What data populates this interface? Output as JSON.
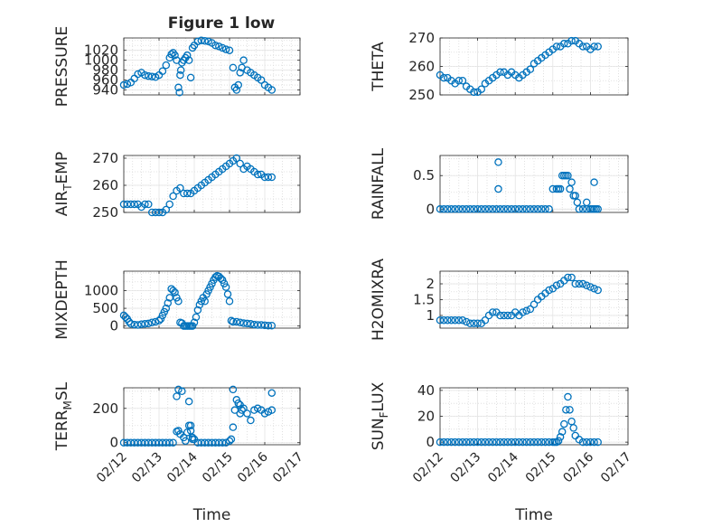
{
  "figure": {
    "title": "Figure 1 low",
    "marker_color": "#0072bd"
  },
  "chart_data": [
    {
      "type": "scatter",
      "ylabel": "PRESSURE",
      "ylim": [
        930,
        1045
      ],
      "yticks": [
        940,
        960,
        980,
        1000,
        1020
      ],
      "xlim": [
        0,
        5
      ],
      "xticks": [
        "02/12",
        "02/13",
        "02/14",
        "02/15",
        "02/16",
        "02/17"
      ],
      "show_xticklabels": false,
      "grid": true,
      "x": [
        0.0,
        0.1,
        0.2,
        0.3,
        0.4,
        0.5,
        0.6,
        0.7,
        0.8,
        0.9,
        1.0,
        1.1,
        1.2,
        1.3,
        1.35,
        1.4,
        1.45,
        1.5,
        1.55,
        1.58,
        1.6,
        1.62,
        1.65,
        1.7,
        1.75,
        1.8,
        1.85,
        1.9,
        1.95,
        2.0,
        2.1,
        2.2,
        2.3,
        2.4,
        2.5,
        2.6,
        2.7,
        2.8,
        2.9,
        3.0,
        3.1,
        3.15,
        3.2,
        3.25,
        3.3,
        3.35,
        3.4,
        3.5,
        3.6,
        3.7,
        3.8,
        3.9,
        4.0,
        4.1,
        4.2
      ],
      "y": [
        950,
        952,
        955,
        963,
        972,
        975,
        970,
        968,
        967,
        966,
        970,
        978,
        990,
        1005,
        1012,
        1015,
        1010,
        1000,
        945,
        935,
        970,
        980,
        995,
        1000,
        1005,
        1010,
        1000,
        965,
        1025,
        1030,
        1038,
        1040,
        1039,
        1038,
        1035,
        1030,
        1028,
        1025,
        1022,
        1020,
        985,
        945,
        940,
        950,
        975,
        985,
        1000,
        980,
        975,
        970,
        965,
        960,
        950,
        945,
        940
      ]
    },
    {
      "type": "scatter",
      "ylabel": "THETA",
      "ylim": [
        250,
        270
      ],
      "yticks": [
        250,
        260,
        270
      ],
      "xlim": [
        0,
        5
      ],
      "xticks": [
        "02/12",
        "02/13",
        "02/14",
        "02/15",
        "02/16",
        "02/17"
      ],
      "show_xticklabels": false,
      "grid": true,
      "x": [
        0.0,
        0.1,
        0.2,
        0.3,
        0.4,
        0.5,
        0.6,
        0.7,
        0.8,
        0.9,
        1.0,
        1.1,
        1.2,
        1.3,
        1.4,
        1.5,
        1.6,
        1.7,
        1.8,
        1.9,
        2.0,
        2.1,
        2.2,
        2.3,
        2.4,
        2.5,
        2.6,
        2.7,
        2.8,
        2.9,
        3.0,
        3.1,
        3.2,
        3.3,
        3.4,
        3.5,
        3.6,
        3.7,
        3.8,
        3.9,
        4.0,
        4.1,
        4.2
      ],
      "y": [
        257,
        256,
        256,
        255,
        254,
        255,
        255,
        253,
        252,
        251,
        251,
        252,
        254,
        255,
        256,
        257,
        258,
        258,
        257,
        258,
        257,
        256,
        257,
        258,
        259,
        261,
        262,
        263,
        264,
        265,
        266,
        267,
        267,
        268,
        268,
        269,
        269,
        268,
        267,
        267,
        266,
        267,
        267
      ]
    },
    {
      "type": "scatter",
      "ylabel": "AIR_TEMP",
      "ylim": [
        250,
        271
      ],
      "yticks": [
        250,
        260,
        270
      ],
      "xlim": [
        0,
        5
      ],
      "xticks": [
        "02/12",
        "02/13",
        "02/14",
        "02/15",
        "02/16",
        "02/17"
      ],
      "show_xticklabels": false,
      "grid": true,
      "x": [
        0.0,
        0.1,
        0.2,
        0.3,
        0.4,
        0.5,
        0.6,
        0.7,
        0.8,
        0.9,
        1.0,
        1.1,
        1.2,
        1.3,
        1.4,
        1.5,
        1.6,
        1.7,
        1.8,
        1.9,
        2.0,
        2.1,
        2.2,
        2.3,
        2.4,
        2.5,
        2.6,
        2.7,
        2.8,
        2.9,
        3.0,
        3.1,
        3.2,
        3.3,
        3.4,
        3.5,
        3.6,
        3.7,
        3.8,
        3.9,
        4.0,
        4.1,
        4.2
      ],
      "y": [
        253,
        253,
        253,
        253,
        253,
        252,
        253,
        253,
        250,
        250,
        250,
        250,
        251,
        253,
        256,
        258,
        259,
        257,
        257,
        257,
        258,
        259,
        260,
        261,
        262,
        263,
        264,
        265,
        266,
        267,
        268,
        269,
        270,
        268,
        266,
        267,
        266,
        265,
        264,
        264,
        263,
        263,
        263
      ]
    },
    {
      "type": "scatter",
      "ylabel": "RAINFALL",
      "ylim": [
        -0.05,
        0.8
      ],
      "yticks": [
        0,
        0.5
      ],
      "xlim": [
        0,
        5
      ],
      "xticks": [
        "02/12",
        "02/13",
        "02/14",
        "02/15",
        "02/16",
        "02/17"
      ],
      "show_xticklabels": false,
      "grid": true,
      "x": [
        0.0,
        0.1,
        0.2,
        0.3,
        0.4,
        0.5,
        0.6,
        0.7,
        0.8,
        0.9,
        1.0,
        1.1,
        1.2,
        1.3,
        1.4,
        1.5,
        1.6,
        1.7,
        1.8,
        1.9,
        2.0,
        2.1,
        2.2,
        2.3,
        2.4,
        2.5,
        2.6,
        2.7,
        2.8,
        2.9,
        3.0,
        3.1,
        3.15,
        3.2,
        3.25,
        3.3,
        3.35,
        3.4,
        3.45,
        3.5,
        3.55,
        3.6,
        3.65,
        3.7,
        3.8,
        3.9,
        4.0,
        4.05,
        4.1,
        4.15,
        4.2,
        1.55,
        1.55,
        3.9,
        4.1
      ],
      "y": [
        0,
        0,
        0,
        0,
        0,
        0,
        0,
        0,
        0,
        0,
        0,
        0,
        0,
        0,
        0,
        0,
        0,
        0,
        0,
        0,
        0,
        0,
        0,
        0,
        0,
        0,
        0,
        0,
        0,
        0,
        0.3,
        0.3,
        0.3,
        0.3,
        0.5,
        0.5,
        0.5,
        0.5,
        0.3,
        0.4,
        0.2,
        0.2,
        0.1,
        0,
        0,
        0,
        0,
        0,
        0,
        0,
        0,
        0.3,
        0.7,
        0.1,
        0.4
      ]
    },
    {
      "type": "scatter",
      "ylabel": "MIXDEPTH",
      "ylim": [
        -60,
        1550
      ],
      "yticks": [
        0,
        500,
        1000
      ],
      "xlim": [
        0,
        5
      ],
      "xticks": [
        "02/12",
        "02/13",
        "02/14",
        "02/15",
        "02/16",
        "02/17"
      ],
      "show_xticklabels": false,
      "grid": true,
      "x": [
        0.0,
        0.05,
        0.1,
        0.15,
        0.2,
        0.3,
        0.4,
        0.5,
        0.6,
        0.7,
        0.8,
        0.9,
        1.0,
        1.05,
        1.1,
        1.15,
        1.2,
        1.25,
        1.3,
        1.35,
        1.4,
        1.45,
        1.5,
        1.55,
        1.6,
        1.65,
        1.7,
        1.75,
        1.8,
        1.85,
        1.9,
        1.95,
        2.0,
        2.05,
        2.1,
        2.15,
        2.2,
        2.25,
        2.3,
        2.35,
        2.4,
        2.45,
        2.5,
        2.55,
        2.6,
        2.65,
        2.7,
        2.75,
        2.8,
        2.85,
        2.9,
        2.95,
        3.0,
        3.05,
        3.1,
        3.2,
        3.3,
        3.4,
        3.5,
        3.6,
        3.7,
        3.8,
        3.9,
        4.0,
        4.1,
        4.2
      ],
      "y": [
        300,
        250,
        200,
        120,
        60,
        40,
        30,
        50,
        60,
        70,
        100,
        120,
        150,
        200,
        300,
        400,
        500,
        650,
        800,
        1050,
        1000,
        950,
        800,
        700,
        100,
        80,
        0,
        0,
        0,
        0,
        0,
        0,
        100,
        250,
        450,
        600,
        700,
        800,
        700,
        900,
        1000,
        1100,
        1200,
        1300,
        1380,
        1420,
        1400,
        1350,
        1300,
        1200,
        1100,
        900,
        700,
        150,
        120,
        120,
        100,
        80,
        70,
        60,
        40,
        30,
        30,
        20,
        10,
        10
      ]
    },
    {
      "type": "scatter",
      "ylabel": "H2OMIXRA",
      "ylim": [
        0.6,
        2.4
      ],
      "yticks": [
        1,
        1.5,
        2
      ],
      "xlim": [
        0,
        5
      ],
      "xticks": [
        "02/12",
        "02/13",
        "02/14",
        "02/15",
        "02/16",
        "02/17"
      ],
      "show_xticklabels": false,
      "grid": true,
      "x": [
        0.0,
        0.1,
        0.2,
        0.3,
        0.4,
        0.5,
        0.6,
        0.7,
        0.8,
        0.9,
        1.0,
        1.1,
        1.2,
        1.3,
        1.4,
        1.5,
        1.6,
        1.7,
        1.8,
        1.9,
        2.0,
        2.1,
        2.2,
        2.3,
        2.4,
        2.5,
        2.6,
        2.7,
        2.8,
        2.9,
        3.0,
        3.1,
        3.2,
        3.3,
        3.4,
        3.5,
        3.6,
        3.7,
        3.8,
        3.9,
        4.0,
        4.1,
        4.2
      ],
      "y": [
        0.85,
        0.85,
        0.85,
        0.85,
        0.85,
        0.85,
        0.85,
        0.8,
        0.75,
        0.75,
        0.75,
        0.75,
        0.85,
        1.0,
        1.1,
        1.1,
        1.0,
        1.0,
        1.0,
        1.0,
        1.1,
        1.0,
        1.1,
        1.15,
        1.2,
        1.35,
        1.5,
        1.6,
        1.7,
        1.8,
        1.85,
        1.95,
        2.0,
        2.1,
        2.2,
        2.2,
        2.0,
        2.0,
        2.0,
        1.95,
        1.9,
        1.85,
        1.8
      ]
    },
    {
      "type": "scatter",
      "ylabel": "TERR_MSL",
      "ylim": [
        -12,
        320
      ],
      "yticks": [
        0,
        200
      ],
      "xlim": [
        0,
        5
      ],
      "xticks": [
        "02/12",
        "02/13",
        "02/14",
        "02/15",
        "02/16",
        "02/17"
      ],
      "show_xticklabels": true,
      "xlabel": "Time",
      "grid": true,
      "x": [
        0.0,
        0.1,
        0.2,
        0.3,
        0.4,
        0.5,
        0.6,
        0.7,
        0.8,
        0.9,
        1.0,
        1.1,
        1.2,
        1.3,
        1.4,
        1.5,
        1.55,
        1.6,
        1.65,
        1.7,
        1.75,
        1.8,
        1.85,
        1.9,
        1.95,
        2.0,
        2.1,
        2.2,
        2.3,
        2.4,
        2.5,
        2.6,
        2.7,
        2.8,
        2.9,
        3.0,
        3.05,
        3.1,
        3.15,
        3.2,
        3.25,
        3.3,
        3.35,
        3.4,
        3.5,
        3.6,
        3.7,
        3.8,
        3.9,
        4.0,
        4.1,
        4.2,
        1.5,
        1.55,
        1.85,
        1.9,
        1.95,
        3.1,
        3.3,
        4.2
      ],
      "y": [
        0,
        0,
        0,
        0,
        0,
        0,
        0,
        0,
        0,
        0,
        0,
        0,
        0,
        0,
        0,
        65,
        70,
        50,
        300,
        30,
        10,
        60,
        100,
        100,
        30,
        20,
        0,
        0,
        0,
        0,
        0,
        0,
        0,
        0,
        0,
        10,
        20,
        90,
        190,
        250,
        230,
        170,
        190,
        200,
        170,
        130,
        190,
        200,
        190,
        170,
        180,
        190,
        270,
        310,
        240,
        70,
        20,
        310,
        220,
        290
      ]
    },
    {
      "type": "scatter",
      "ylabel": "SUN_FLUX",
      "ylim": [
        -2,
        42
      ],
      "yticks": [
        0,
        20,
        40
      ],
      "xlim": [
        0,
        5
      ],
      "xticks": [
        "02/12",
        "02/13",
        "02/14",
        "02/15",
        "02/16",
        "02/17"
      ],
      "show_xticklabels": true,
      "xlabel": "Time",
      "grid": true,
      "x": [
        0.0,
        0.1,
        0.2,
        0.3,
        0.4,
        0.5,
        0.6,
        0.7,
        0.8,
        0.9,
        1.0,
        1.1,
        1.2,
        1.3,
        1.4,
        1.5,
        1.6,
        1.7,
        1.8,
        1.9,
        2.0,
        2.1,
        2.2,
        2.3,
        2.4,
        2.5,
        2.6,
        2.7,
        2.8,
        2.9,
        3.0,
        3.05,
        3.1,
        3.15,
        3.2,
        3.25,
        3.3,
        3.35,
        3.4,
        3.45,
        3.5,
        3.55,
        3.6,
        3.7,
        3.8,
        3.9,
        4.0,
        4.1,
        4.2
      ],
      "y": [
        0,
        0,
        0,
        0,
        0,
        0,
        0,
        0,
        0,
        0,
        0,
        0,
        0,
        0,
        0,
        0,
        0,
        0,
        0,
        0,
        0,
        0,
        0,
        0,
        0,
        0,
        0,
        0,
        0,
        0,
        0,
        0,
        0,
        1,
        4,
        8,
        14,
        25,
        35,
        25,
        16,
        11,
        5,
        2,
        0,
        0,
        0,
        0,
        0
      ]
    }
  ]
}
